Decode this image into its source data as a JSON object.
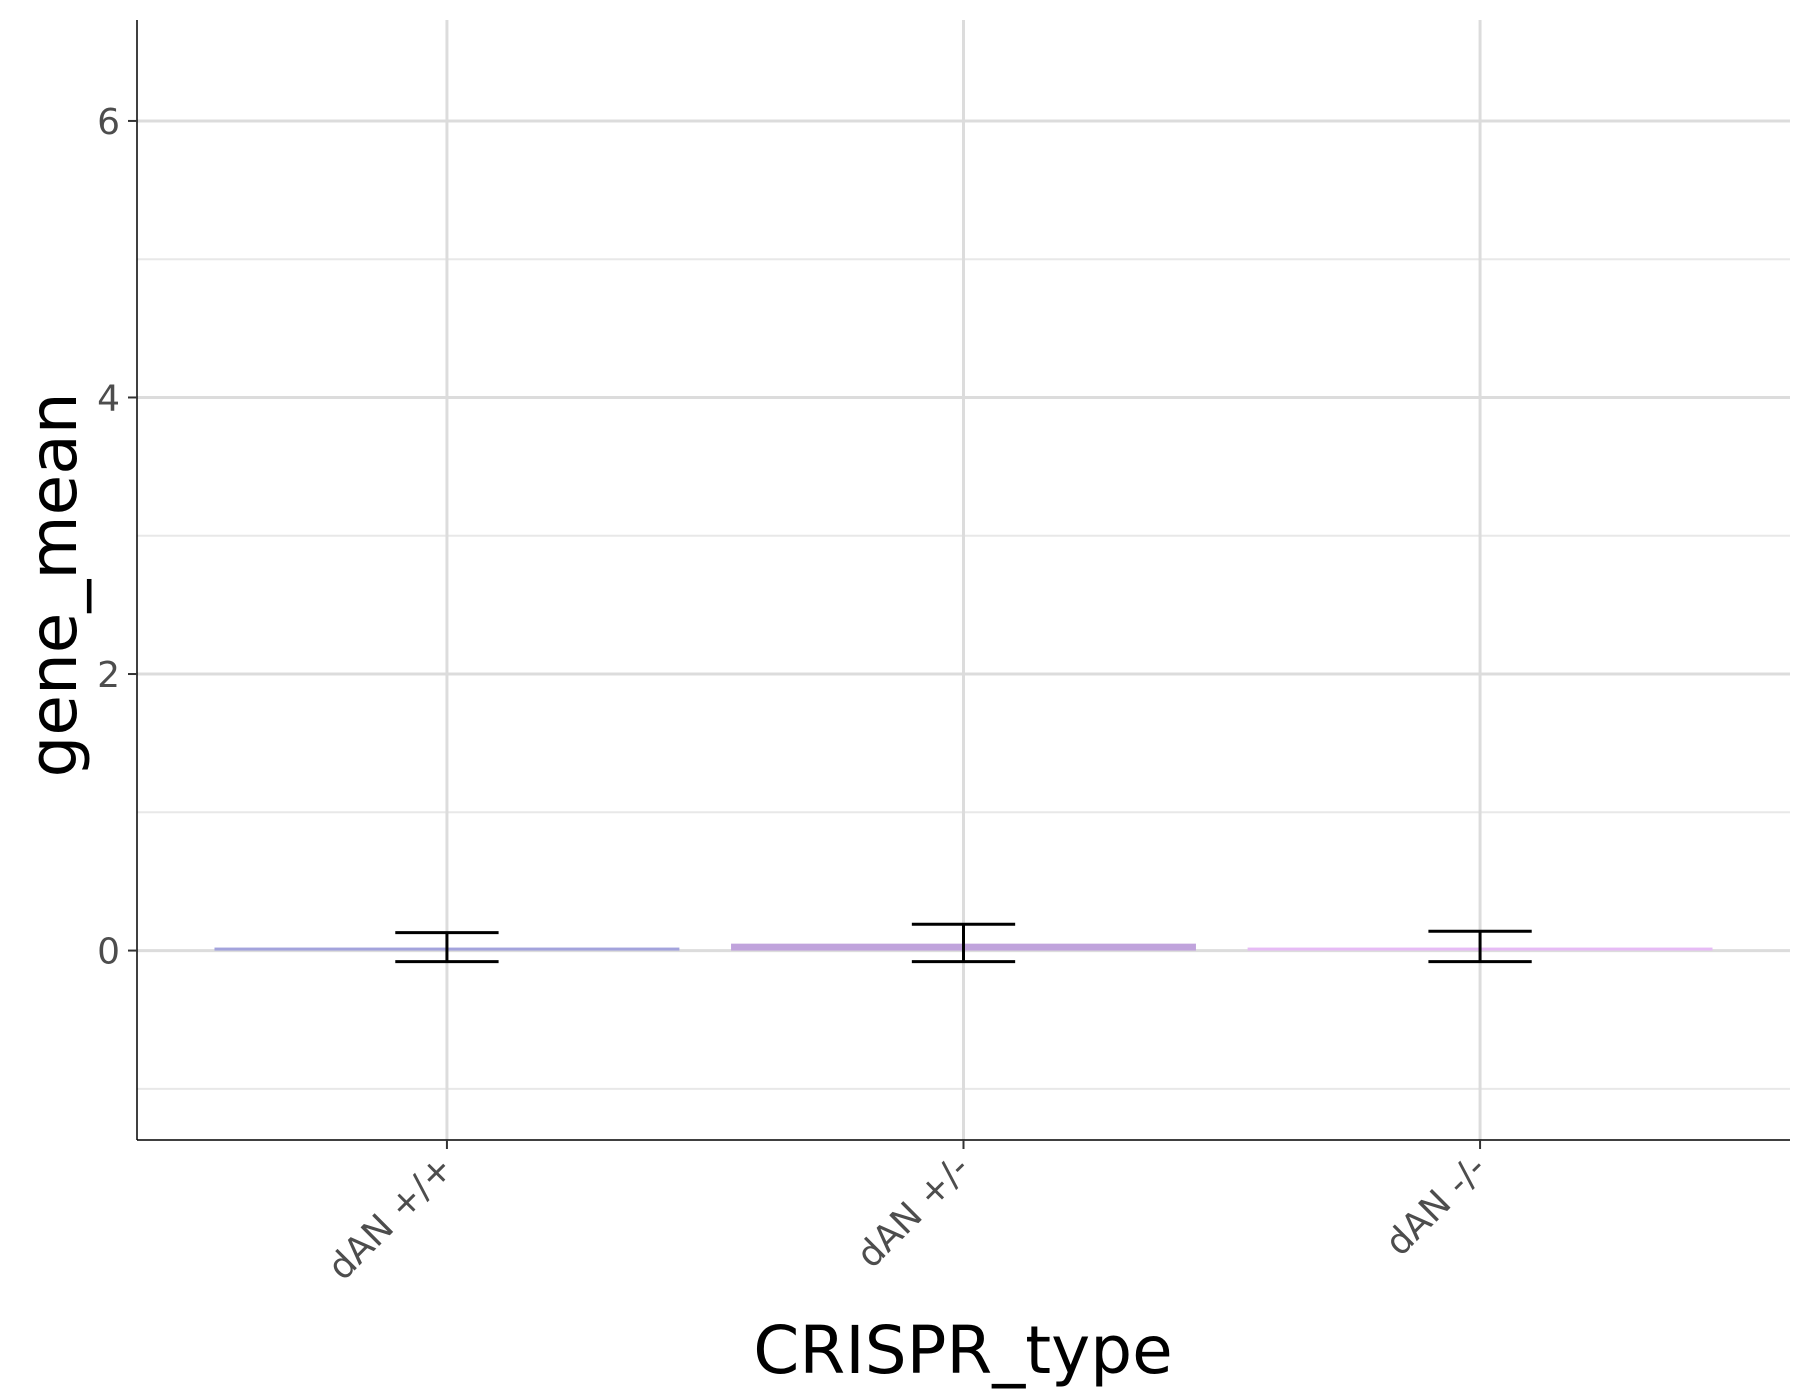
{
  "chart_data": {
    "type": "bar",
    "xlabel": "CRISPR_type",
    "ylabel": "gene_mean",
    "categories": [
      "dAN +/+",
      "dAN +/-",
      "dAN -/-"
    ],
    "values": [
      0.02,
      0.05,
      0.02
    ],
    "error_lower": [
      -0.08,
      -0.08,
      -0.08
    ],
    "error_upper": [
      0.13,
      0.19,
      0.14
    ],
    "colors": [
      "#a3a3dc",
      "#c0a3dc",
      "#e6bbf5"
    ],
    "ylim": [
      -1.37,
      6.73
    ],
    "yticks": [
      0,
      2,
      4,
      6
    ],
    "ytick_labels": [
      "0",
      "2",
      "4",
      "6"
    ],
    "grid": true,
    "legend": "none"
  }
}
